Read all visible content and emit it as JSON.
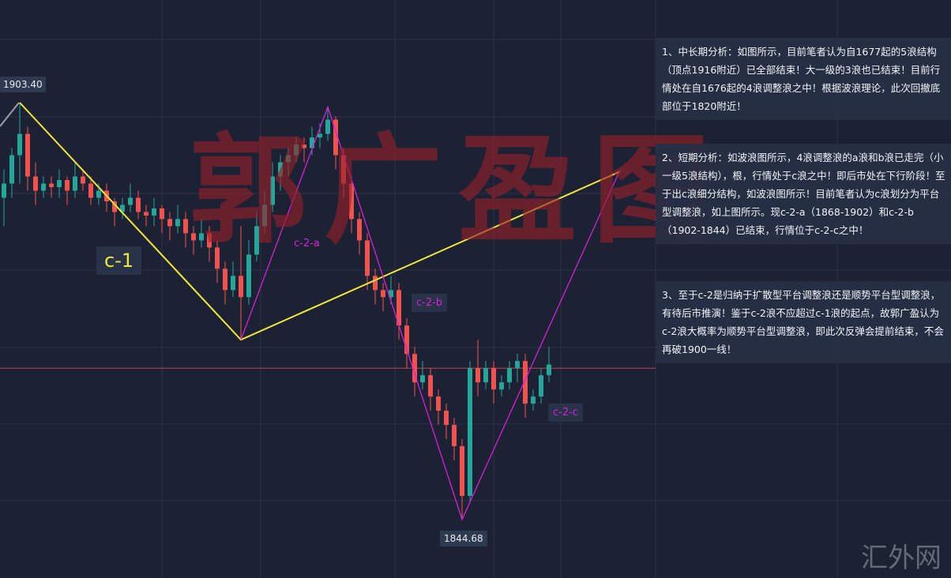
{
  "watermark": {
    "text": "郭广盈图",
    "site": "汇外网"
  },
  "notes": [
    "1、中长期分析：如图所示，目前笔者认为自1677起的5浪结构（顶点1916附近）已全部结束！大一级的3浪也已结束！目前行情处在自1676起的4浪调整浪之中！根据波浪理论，此次回撤底部位于1820附近！",
    "2、短期分析：如波浪图所示，4浪调整浪的a浪和b浪已走完（小一级5浪结构），根，行情处于c浪之中！即后市处在下行阶段！至于出c浪细分结构，如波浪图所示！目前笔者认为c浪划分为平台型调整浪，如上图所示。现c-2-a（1868-1902）和c-2-b（1902-1844）已结束，行情位于c-2-c之中！",
    "3、至于c-2是归纳于扩散型平台调整浪还是顺势平台型调整浪，有待后市推演！鉴于c-2浪不应超过c-1浪的起点，故郭广盈认为c-2浪大概率为顺势平台型调整浪，即此次反弹会提前结束，不会再破1900一线！"
  ],
  "chart_data": {
    "type": "candlestick",
    "colors": {
      "up": "#26a69a",
      "down": "#ef5350",
      "background": "#1c2234",
      "wave_c1": "#f2e83a",
      "wave_c2": "#d81fd8",
      "hline": "#c0444a"
    },
    "price_labels": {
      "high": "1903.40",
      "low": "1844.68"
    },
    "horizontal_line": 1866,
    "candles": [
      [
        1890,
        1894,
        1886,
        1892
      ],
      [
        1892,
        1897,
        1890,
        1896
      ],
      [
        1896,
        1903.4,
        1892,
        1899
      ],
      [
        1899,
        1900,
        1891,
        1893
      ],
      [
        1893,
        1895,
        1889,
        1891
      ],
      [
        1891,
        1893,
        1890,
        1892
      ],
      [
        1892,
        1893,
        1890,
        1891.5
      ],
      [
        1891.5,
        1894,
        1890,
        1892.5
      ],
      [
        1892.5,
        1893,
        1889,
        1891
      ],
      [
        1891,
        1895,
        1890,
        1893
      ],
      [
        1893,
        1894,
        1891,
        1892
      ],
      [
        1892,
        1893,
        1889,
        1890
      ],
      [
        1890,
        1892,
        1889,
        1891
      ],
      [
        1891,
        1892,
        1888,
        1889.5
      ],
      [
        1889.5,
        1890,
        1886,
        1888
      ],
      [
        1888,
        1890,
        1887,
        1889
      ],
      [
        1889,
        1892,
        1888,
        1890
      ],
      [
        1890,
        1891,
        1887,
        1888
      ],
      [
        1888,
        1889,
        1886,
        1887.5
      ],
      [
        1887.5,
        1890,
        1886,
        1888.5
      ],
      [
        1888.5,
        1889,
        1885,
        1887
      ],
      [
        1887,
        1888,
        1884,
        1886
      ],
      [
        1886,
        1889,
        1885,
        1887
      ],
      [
        1887,
        1888,
        1883,
        1885
      ],
      [
        1885,
        1886,
        1882,
        1884
      ],
      [
        1884,
        1887,
        1883,
        1885
      ],
      [
        1885,
        1886,
        1881,
        1883
      ],
      [
        1883,
        1884,
        1878,
        1880
      ],
      [
        1880,
        1881,
        1875,
        1877
      ],
      [
        1877,
        1881,
        1876,
        1879
      ],
      [
        1879,
        1886,
        1870,
        1876
      ],
      [
        1876,
        1884,
        1875,
        1882
      ],
      [
        1882,
        1888,
        1881,
        1886
      ],
      [
        1886,
        1891,
        1885,
        1889
      ],
      [
        1889,
        1895,
        1888,
        1893
      ],
      [
        1893,
        1896,
        1891,
        1895
      ],
      [
        1895,
        1897,
        1893,
        1896
      ],
      [
        1896,
        1898.5,
        1895,
        1897.5
      ],
      [
        1897.5,
        1898.5,
        1895,
        1897
      ],
      [
        1897,
        1900,
        1896,
        1898.5
      ],
      [
        1898.5,
        1900.5,
        1897,
        1899
      ],
      [
        1899,
        1902.8,
        1898,
        1901
      ],
      [
        1901,
        1901.5,
        1894,
        1896
      ],
      [
        1896,
        1897,
        1890,
        1892
      ],
      [
        1892,
        1893,
        1885,
        1887
      ],
      [
        1887,
        1888,
        1882,
        1884
      ],
      [
        1884,
        1885,
        1877,
        1879
      ],
      [
        1879,
        1880,
        1875,
        1877
      ],
      [
        1877,
        1878,
        1874,
        1876
      ],
      [
        1876,
        1879,
        1875,
        1877
      ],
      [
        1877,
        1878,
        1870,
        1872
      ],
      [
        1872,
        1873,
        1866,
        1868
      ],
      [
        1868,
        1869,
        1862,
        1864
      ],
      [
        1864,
        1867,
        1863,
        1865
      ],
      [
        1865,
        1866,
        1860,
        1862
      ],
      [
        1862,
        1863,
        1858,
        1860
      ],
      [
        1860,
        1861,
        1856,
        1858
      ],
      [
        1858,
        1859,
        1853,
        1855
      ],
      [
        1855,
        1856,
        1844.68,
        1848
      ],
      [
        1848,
        1867,
        1847,
        1866
      ],
      [
        1866,
        1870,
        1862,
        1864
      ],
      [
        1864,
        1867,
        1863,
        1866
      ],
      [
        1866,
        1867,
        1861,
        1863
      ],
      [
        1863,
        1865,
        1862,
        1864
      ],
      [
        1864,
        1867,
        1863,
        1866
      ],
      [
        1866,
        1868,
        1864,
        1867
      ],
      [
        1867,
        1868,
        1859,
        1861
      ],
      [
        1861,
        1863,
        1860,
        1862
      ],
      [
        1862,
        1866,
        1861,
        1865
      ],
      [
        1865,
        1869,
        1864,
        1866.5
      ]
    ],
    "waves": [
      {
        "name": "c-1",
        "color": "#f2e83a",
        "points": [
          [
            2,
            1903.4
          ],
          [
            30,
            1870
          ],
          [
            78,
            1893.7
          ]
        ]
      },
      {
        "name": "c-2",
        "color": "#d81fd8",
        "points": [
          [
            30,
            1870
          ],
          [
            41,
            1902.8
          ],
          [
            58,
            1844.68
          ],
          [
            78,
            1893.9
          ]
        ]
      }
    ],
    "wave_labels": [
      {
        "text": "c-1",
        "color": "#f2e83a"
      },
      {
        "text": "c-2-a",
        "color": "#d81fd8"
      },
      {
        "text": "c-2-b",
        "color": "#d81fd8"
      },
      {
        "text": "c-2-c",
        "color": "#d81fd8"
      }
    ]
  }
}
